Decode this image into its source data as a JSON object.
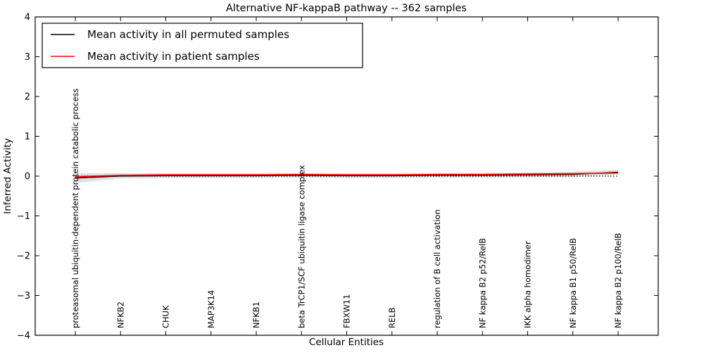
{
  "figure": {
    "title": "Alternative NF-kappaB pathway -- 362 samples",
    "xlabel": "Cellular Entities",
    "ylabel": "Inferred Activity"
  },
  "legend": {
    "items": [
      {
        "label": "Mean activity in all permuted samples",
        "color": "#000000"
      },
      {
        "label": "Mean activity in patient samples",
        "color": "#ff0000"
      }
    ]
  },
  "chart_data": {
    "type": "line",
    "title": "Alternative NF-kappaB pathway -- 362 samples",
    "xlabel": "Cellular Entities",
    "ylabel": "Inferred Activity",
    "ylim": [
      -4,
      4
    ],
    "grid": false,
    "legend_position": "upper left",
    "yticks": [
      {
        "value": 4,
        "label": "4"
      },
      {
        "value": 3,
        "label": "3"
      },
      {
        "value": 2,
        "label": "2"
      },
      {
        "value": 1,
        "label": "1"
      },
      {
        "value": 0,
        "label": "0"
      },
      {
        "value": -1,
        "label": "−1"
      },
      {
        "value": -2,
        "label": "−2"
      },
      {
        "value": -3,
        "label": "−3"
      },
      {
        "value": -4,
        "label": "−4"
      }
    ],
    "categories": [
      "proteasomal ubiquitin-dependent protein catabolic process",
      "NFKB2",
      "CHUK",
      "MAP3K14",
      "NFKB1",
      "beta TrCP1/SCF ubiquitin ligase complex",
      "FBXW11",
      "RELB",
      "regulation of B cell activation",
      "NF kappa B2 p52/RelB",
      "IKK alpha homodimer",
      "NF kappa B1 p50/RelB",
      "NF kappa B2 p100/RelB"
    ],
    "series": [
      {
        "name": "Mean activity in all permuted samples",
        "color": "#000000",
        "style": "solid",
        "values": [
          -0.05,
          0.0,
          0.01,
          0.01,
          0.01,
          0.02,
          0.01,
          0.01,
          0.02,
          0.02,
          0.03,
          0.04,
          0.1
        ]
      },
      {
        "name": "Mean activity in patient samples",
        "color": "#ff0000",
        "style": "solid",
        "values": [
          -0.02,
          0.02,
          0.03,
          0.03,
          0.03,
          0.04,
          0.03,
          0.03,
          0.04,
          0.04,
          0.05,
          0.06,
          0.08
        ]
      }
    ],
    "band": {
      "name": "permuted-samples-spread-band",
      "color": "#e0e0e0",
      "upper": [
        0.07,
        0.07,
        0.07,
        0.07,
        0.07,
        0.08,
        0.07,
        0.07,
        0.08,
        0.08,
        0.09,
        0.11,
        0.16
      ],
      "lower": [
        -0.17,
        -0.06,
        -0.05,
        -0.05,
        -0.05,
        -0.04,
        -0.05,
        -0.05,
        -0.04,
        -0.04,
        -0.03,
        -0.02,
        0.04
      ]
    },
    "reference_line": {
      "y": 0,
      "style": "dotted",
      "color": "#000000"
    }
  }
}
